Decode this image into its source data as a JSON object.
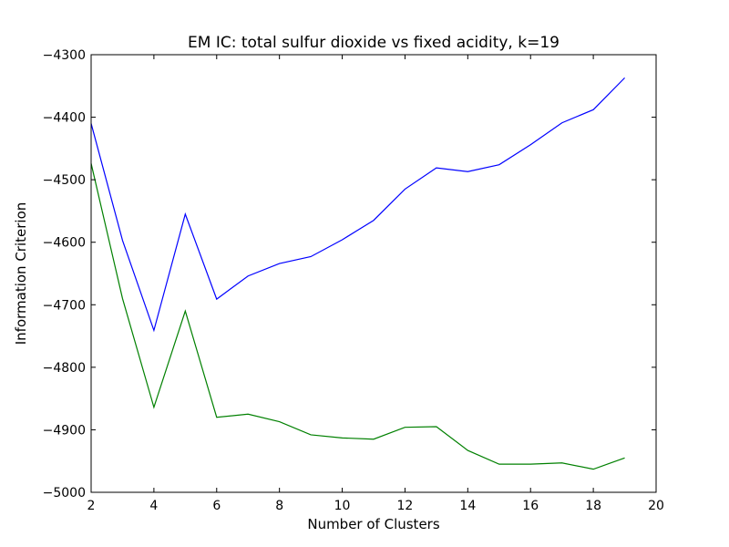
{
  "chart_data": {
    "type": "line",
    "title": "EM IC: total sulfur dioxide vs fixed acidity, k=19",
    "xlabel": "Number of Clusters",
    "ylabel": "Information Criterion",
    "xlim": [
      2,
      20
    ],
    "ylim": [
      -5000,
      -4300
    ],
    "xticks": [
      2,
      4,
      6,
      8,
      10,
      12,
      14,
      16,
      18,
      20
    ],
    "yticks": [
      -5000,
      -4900,
      -4800,
      -4700,
      -4600,
      -4500,
      -4400,
      -4300
    ],
    "grid": false,
    "x": [
      2,
      3,
      4,
      5,
      6,
      7,
      8,
      9,
      10,
      11,
      12,
      13,
      14,
      15,
      16,
      17,
      18,
      19
    ],
    "series": [
      {
        "color": "#0000ff",
        "values": [
          -4410,
          -4597,
          -4741,
          -4555,
          -4691,
          -4654,
          -4634,
          -4623,
          -4596,
          -4565,
          -4515,
          -4481,
          -4487,
          -4476,
          -4444,
          -4409,
          -4388,
          -4337
        ]
      },
      {
        "color": "#008000",
        "values": [
          -4474,
          -4690,
          -4864,
          -4710,
          -4880,
          -4875,
          -4887,
          -4908,
          -4913,
          -4915,
          -4896,
          -4895,
          -4933,
          -4955,
          -4955,
          -4953,
          -4963,
          -4945
        ]
      }
    ]
  }
}
